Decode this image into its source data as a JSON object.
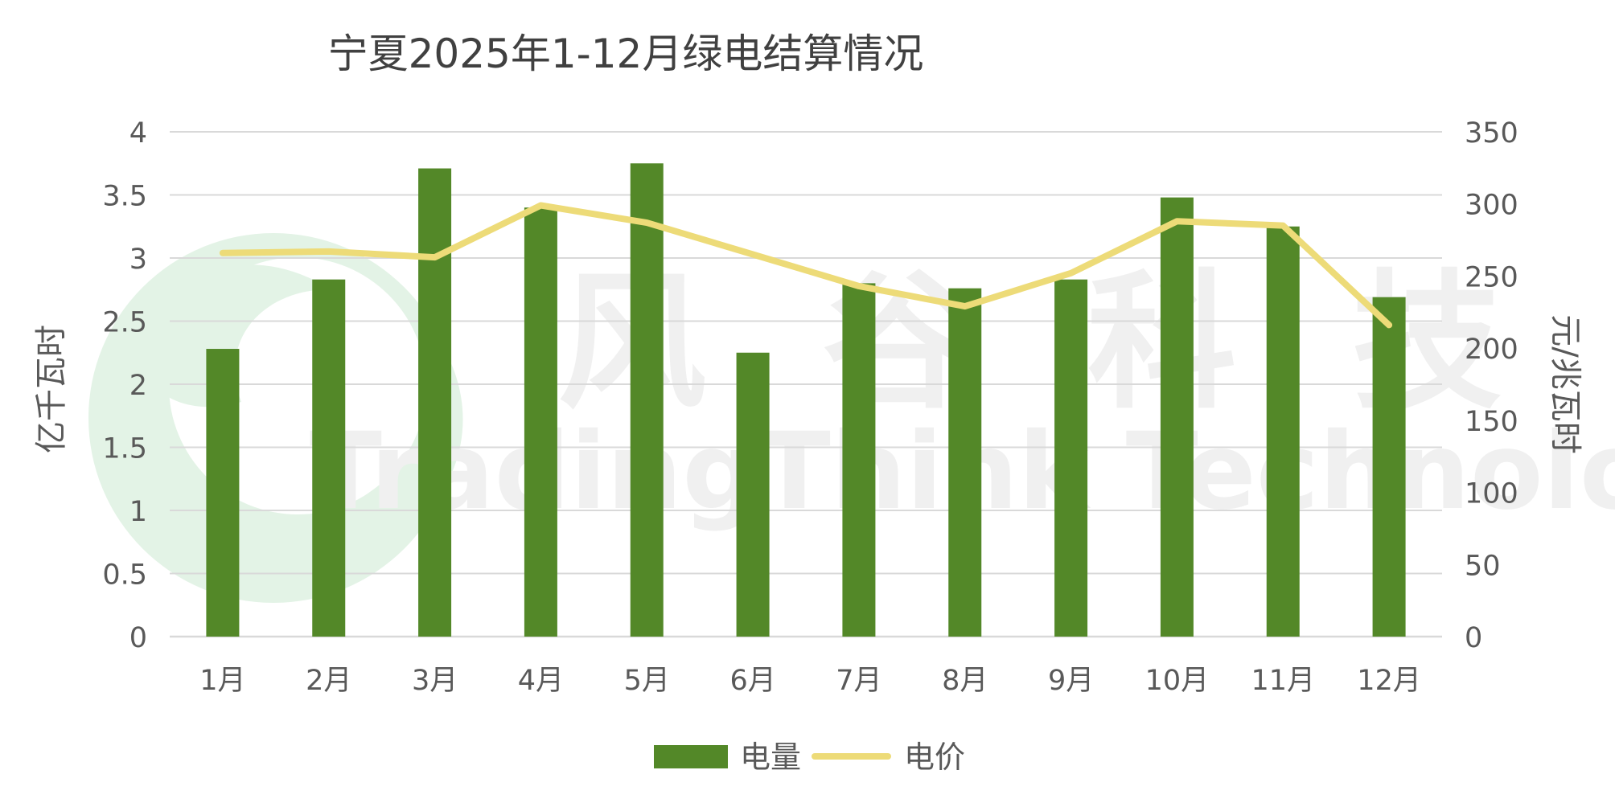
{
  "chart_data": {
    "type": "bar+line",
    "title": "宁夏2025年1-12月绿电结算情况",
    "categories": [
      "1月",
      "2月",
      "3月",
      "4月",
      "5月",
      "6月",
      "7月",
      "8月",
      "9月",
      "10月",
      "11月",
      "12月"
    ],
    "series": [
      {
        "name": "电量",
        "type": "bar",
        "axis": "left",
        "values": [
          2.28,
          2.83,
          3.71,
          3.4,
          3.75,
          2.25,
          2.8,
          2.76,
          2.83,
          3.48,
          3.25,
          2.69
        ]
      },
      {
        "name": "电价",
        "type": "line",
        "axis": "right",
        "values": [
          266,
          267,
          263,
          299,
          287,
          265,
          243,
          229,
          252,
          288,
          285,
          216
        ]
      }
    ],
    "y_left": {
      "label": "亿千瓦时",
      "ylim": [
        0,
        4
      ],
      "ticks": [
        "0",
        "0.5",
        "1",
        "1.5",
        "2",
        "2.5",
        "3",
        "3.5",
        "4"
      ]
    },
    "y_right": {
      "label": "元/兆瓦时",
      "ylim": [
        0,
        350
      ],
      "ticks": [
        "0",
        "50",
        "100",
        "150",
        "200",
        "250",
        "300",
        "350"
      ]
    },
    "grid": true,
    "legend_position": "bottom",
    "colors": {
      "bar": "#538828",
      "line": "#EDDB78",
      "grid": "#D9D9D9",
      "text": "#595959",
      "title": "#404040"
    }
  },
  "watermark": {
    "text_cn": "风 谷 科 技",
    "text_en": "TradingThink Technology"
  }
}
